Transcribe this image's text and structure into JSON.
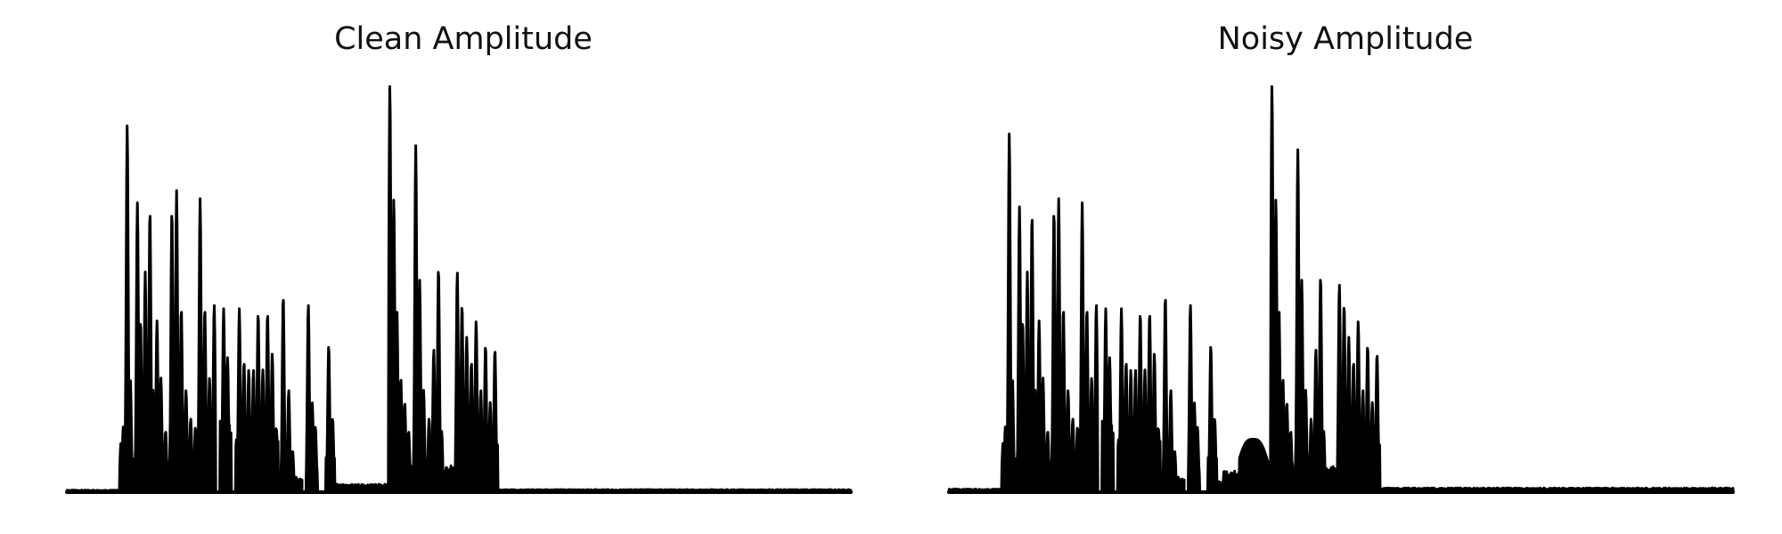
{
  "colors": {
    "line": "#000000",
    "background": "#ffffff"
  },
  "chart_data": [
    {
      "type": "area",
      "title": "Clean Amplitude",
      "axes_visible": false,
      "ylim": [
        0,
        1
      ],
      "segments": [
        {
          "start": 0.0,
          "end": 0.067,
          "level": 0.004
        },
        {
          "start": 0.067,
          "end": 0.085,
          "peaks": [
            [
              0.069,
              0.12
            ],
            [
              0.072,
              0.16
            ],
            [
              0.077,
              0.9
            ],
            [
              0.081,
              0.28
            ]
          ]
        },
        {
          "start": 0.085,
          "end": 0.13,
          "peaks": [
            [
              0.09,
              0.71
            ],
            [
              0.094,
              0.42
            ],
            [
              0.1,
              0.54
            ],
            [
              0.106,
              0.69
            ],
            [
              0.11,
              0.25
            ],
            [
              0.115,
              0.42
            ],
            [
              0.12,
              0.28
            ],
            [
              0.126,
              0.15
            ]
          ]
        },
        {
          "start": 0.13,
          "end": 0.19,
          "peaks": [
            [
              0.134,
              0.69
            ],
            [
              0.14,
              0.74
            ],
            [
              0.146,
              0.45
            ],
            [
              0.152,
              0.25
            ],
            [
              0.158,
              0.18
            ],
            [
              0.164,
              0.16
            ],
            [
              0.17,
              0.72
            ],
            [
              0.176,
              0.45
            ],
            [
              0.182,
              0.28
            ],
            [
              0.188,
              0.46
            ]
          ]
        },
        {
          "start": 0.195,
          "end": 0.21,
          "peaks": [
            [
              0.2,
              0.45
            ],
            [
              0.205,
              0.33
            ]
          ]
        },
        {
          "start": 0.215,
          "end": 0.27,
          "peaks": [
            [
              0.22,
              0.45
            ],
            [
              0.226,
              0.32
            ],
            [
              0.232,
              0.3
            ],
            [
              0.238,
              0.3
            ],
            [
              0.244,
              0.44
            ],
            [
              0.25,
              0.3
            ],
            [
              0.256,
              0.44
            ],
            [
              0.262,
              0.34
            ]
          ]
        },
        {
          "start": 0.27,
          "end": 0.29,
          "peaks": [
            [
              0.276,
              0.48
            ],
            [
              0.283,
              0.25
            ],
            [
              0.288,
              0.1
            ]
          ]
        },
        {
          "start": 0.29,
          "end": 0.3,
          "level": 0.03
        },
        {
          "start": 0.305,
          "end": 0.32,
          "peaks": [
            [
              0.308,
              0.46
            ],
            [
              0.313,
              0.22
            ],
            [
              0.317,
              0.16
            ]
          ]
        },
        {
          "start": 0.33,
          "end": 0.342,
          "peaks": [
            [
              0.334,
              0.36
            ],
            [
              0.339,
              0.18
            ]
          ]
        },
        {
          "start": 0.342,
          "end": 0.41,
          "level": 0.015
        },
        {
          "start": 0.41,
          "end": 0.44,
          "peaks": [
            [
              0.412,
              1.0
            ],
            [
              0.417,
              0.72
            ],
            [
              0.421,
              0.45
            ],
            [
              0.426,
              0.28
            ],
            [
              0.431,
              0.22
            ],
            [
              0.436,
              0.15
            ]
          ]
        },
        {
          "start": 0.44,
          "end": 0.48,
          "peaks": [
            [
              0.445,
              0.85
            ],
            [
              0.45,
              0.52
            ],
            [
              0.455,
              0.25
            ],
            [
              0.462,
              0.18
            ],
            [
              0.468,
              0.35
            ],
            [
              0.474,
              0.55
            ],
            [
              0.478,
              0.15
            ]
          ]
        },
        {
          "start": 0.48,
          "end": 0.495,
          "level": 0.05
        },
        {
          "start": 0.495,
          "end": 0.55,
          "peaks": [
            [
              0.498,
              0.54
            ],
            [
              0.504,
              0.46
            ],
            [
              0.51,
              0.38
            ],
            [
              0.516,
              0.32
            ],
            [
              0.522,
              0.42
            ],
            [
              0.528,
              0.25
            ],
            [
              0.534,
              0.36
            ],
            [
              0.54,
              0.22
            ],
            [
              0.546,
              0.35
            ],
            [
              0.549,
              0.12
            ]
          ]
        },
        {
          "start": 0.55,
          "end": 1.0,
          "level": 0.005
        }
      ]
    },
    {
      "type": "area",
      "title": "Noisy Amplitude",
      "axes_visible": false,
      "ylim": [
        0,
        1
      ],
      "segments": [
        {
          "start": 0.0,
          "end": 0.067,
          "level": 0.006
        },
        {
          "start": 0.067,
          "end": 0.085,
          "peaks": [
            [
              0.069,
              0.12
            ],
            [
              0.072,
              0.16
            ],
            [
              0.077,
              0.88
            ],
            [
              0.081,
              0.28
            ]
          ]
        },
        {
          "start": 0.085,
          "end": 0.13,
          "peaks": [
            [
              0.09,
              0.7
            ],
            [
              0.094,
              0.42
            ],
            [
              0.1,
              0.54
            ],
            [
              0.106,
              0.68
            ],
            [
              0.11,
              0.25
            ],
            [
              0.115,
              0.42
            ],
            [
              0.12,
              0.28
            ],
            [
              0.126,
              0.15
            ]
          ]
        },
        {
          "start": 0.13,
          "end": 0.19,
          "peaks": [
            [
              0.134,
              0.69
            ],
            [
              0.14,
              0.72
            ],
            [
              0.146,
              0.45
            ],
            [
              0.152,
              0.25
            ],
            [
              0.158,
              0.18
            ],
            [
              0.164,
              0.16
            ],
            [
              0.17,
              0.71
            ],
            [
              0.176,
              0.45
            ],
            [
              0.182,
              0.28
            ],
            [
              0.188,
              0.46
            ]
          ]
        },
        {
          "start": 0.195,
          "end": 0.21,
          "peaks": [
            [
              0.2,
              0.45
            ],
            [
              0.205,
              0.33
            ]
          ]
        },
        {
          "start": 0.215,
          "end": 0.27,
          "peaks": [
            [
              0.22,
              0.45
            ],
            [
              0.226,
              0.32
            ],
            [
              0.232,
              0.3
            ],
            [
              0.238,
              0.3
            ],
            [
              0.244,
              0.44
            ],
            [
              0.25,
              0.3
            ],
            [
              0.256,
              0.44
            ],
            [
              0.262,
              0.34
            ]
          ]
        },
        {
          "start": 0.27,
          "end": 0.29,
          "peaks": [
            [
              0.276,
              0.48
            ],
            [
              0.283,
              0.25
            ],
            [
              0.288,
              0.1
            ]
          ]
        },
        {
          "start": 0.29,
          "end": 0.3,
          "level": 0.03
        },
        {
          "start": 0.305,
          "end": 0.32,
          "peaks": [
            [
              0.308,
              0.46
            ],
            [
              0.313,
              0.22
            ],
            [
              0.317,
              0.16
            ]
          ]
        },
        {
          "start": 0.33,
          "end": 0.342,
          "peaks": [
            [
              0.334,
              0.36
            ],
            [
              0.339,
              0.18
            ]
          ]
        },
        {
          "start": 0.342,
          "end": 0.35,
          "level": 0.02
        },
        {
          "start": 0.35,
          "end": 0.37,
          "level": 0.04
        },
        {
          "start": 0.37,
          "end": 0.41,
          "hump": {
            "center": 0.388,
            "width": 0.022,
            "height": 0.12
          }
        },
        {
          "start": 0.41,
          "end": 0.44,
          "peaks": [
            [
              0.412,
              1.0
            ],
            [
              0.417,
              0.72
            ],
            [
              0.421,
              0.45
            ],
            [
              0.426,
              0.28
            ],
            [
              0.431,
              0.22
            ],
            [
              0.436,
              0.15
            ]
          ]
        },
        {
          "start": 0.44,
          "end": 0.48,
          "peaks": [
            [
              0.445,
              0.84
            ],
            [
              0.45,
              0.52
            ],
            [
              0.455,
              0.25
            ],
            [
              0.462,
              0.18
            ],
            [
              0.468,
              0.35
            ],
            [
              0.474,
              0.53
            ],
            [
              0.478,
              0.15
            ]
          ]
        },
        {
          "start": 0.48,
          "end": 0.495,
          "level": 0.05
        },
        {
          "start": 0.495,
          "end": 0.55,
          "peaks": [
            [
              0.498,
              0.51
            ],
            [
              0.504,
              0.46
            ],
            [
              0.51,
              0.38
            ],
            [
              0.516,
              0.32
            ],
            [
              0.522,
              0.42
            ],
            [
              0.528,
              0.25
            ],
            [
              0.534,
              0.36
            ],
            [
              0.54,
              0.22
            ],
            [
              0.546,
              0.34
            ],
            [
              0.549,
              0.12
            ]
          ]
        },
        {
          "start": 0.55,
          "end": 1.0,
          "level": 0.008
        }
      ]
    }
  ]
}
